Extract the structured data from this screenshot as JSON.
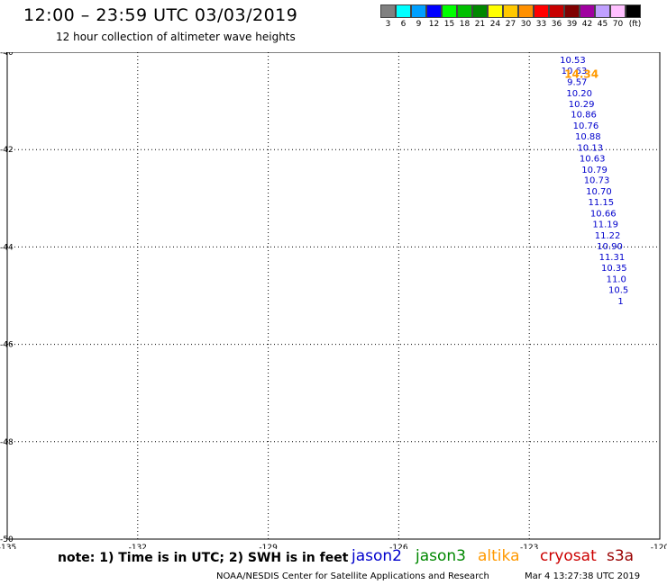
{
  "header": {
    "title": "12:00 – 23:59 UTC 03/03/2019",
    "subtitle": "12 hour collection of altimeter wave heights"
  },
  "scale": {
    "swatches": [
      {
        "color": "#808080",
        "label": "3"
      },
      {
        "color": "#00ffff",
        "label": "6"
      },
      {
        "color": "#00a0ff",
        "label": "9"
      },
      {
        "color": "#0000ff",
        "label": "12"
      },
      {
        "color": "#00ff00",
        "label": "15"
      },
      {
        "color": "#00c000",
        "label": "18"
      },
      {
        "color": "#008800",
        "label": "21"
      },
      {
        "color": "#ffff00",
        "label": "24"
      },
      {
        "color": "#ffc800",
        "label": "27"
      },
      {
        "color": "#ff9000",
        "label": "30"
      },
      {
        "color": "#ff0000",
        "label": "33"
      },
      {
        "color": "#c80000",
        "label": "36"
      },
      {
        "color": "#800000",
        "label": "39"
      },
      {
        "color": "#a000a0",
        "label": "42"
      },
      {
        "color": "#c0a0ff",
        "label": "45"
      },
      {
        "color": "#ffc0ff",
        "label": "70"
      },
      {
        "color": "#000000",
        "label": "(ft)"
      }
    ]
  },
  "map": {
    "lon_ticks": [
      -135,
      -132,
      -129,
      -126,
      -123,
      -120
    ],
    "lat_ticks": [
      -40,
      -42,
      -44,
      -46,
      -48,
      -50
    ],
    "lon_labels": [
      "-135",
      "-132",
      "-129",
      "-126",
      "-123",
      "-120"
    ],
    "lat_labels": [
      "-40",
      "-42",
      "-44",
      "-46",
      "-48",
      "-50"
    ]
  },
  "obs": {
    "jason2_color": "#0000cc",
    "altika_color": "#ff9900",
    "altika": {
      "lon": -121.8,
      "lat": -40.45,
      "value": "14.34"
    },
    "jason2": [
      {
        "lon": -122.0,
        "lat": -40.15,
        "value": "10.53"
      },
      {
        "lon": -121.97,
        "lat": -40.37,
        "value": "10.63"
      },
      {
        "lon": -121.9,
        "lat": -40.6,
        "value": "9.57"
      },
      {
        "lon": -121.85,
        "lat": -40.83,
        "value": "10.20"
      },
      {
        "lon": -121.8,
        "lat": -41.05,
        "value": "10.29"
      },
      {
        "lon": -121.75,
        "lat": -41.27,
        "value": "10.86"
      },
      {
        "lon": -121.7,
        "lat": -41.5,
        "value": "10.76"
      },
      {
        "lon": -121.65,
        "lat": -41.72,
        "value": "10.88"
      },
      {
        "lon": -121.6,
        "lat": -41.95,
        "value": "10.13"
      },
      {
        "lon": -121.55,
        "lat": -42.17,
        "value": "10.63"
      },
      {
        "lon": -121.5,
        "lat": -42.4,
        "value": "10.79"
      },
      {
        "lon": -121.45,
        "lat": -42.62,
        "value": "10.73"
      },
      {
        "lon": -121.4,
        "lat": -42.85,
        "value": "10.70"
      },
      {
        "lon": -121.35,
        "lat": -43.07,
        "value": "11.15"
      },
      {
        "lon": -121.3,
        "lat": -43.3,
        "value": "10.66"
      },
      {
        "lon": -121.25,
        "lat": -43.52,
        "value": "11.19"
      },
      {
        "lon": -121.2,
        "lat": -43.75,
        "value": "11.22"
      },
      {
        "lon": -121.15,
        "lat": -43.97,
        "value": "10.90"
      },
      {
        "lon": -121.1,
        "lat": -44.2,
        "value": "11.31"
      },
      {
        "lon": -121.05,
        "lat": -44.42,
        "value": "10.35"
      },
      {
        "lon": -121.0,
        "lat": -44.65,
        "value": "11.0"
      },
      {
        "lon": -120.95,
        "lat": -44.87,
        "value": "10.5"
      },
      {
        "lon": -120.9,
        "lat": -45.1,
        "value": "1"
      }
    ]
  },
  "footer": {
    "note": "note:  1) Time is in UTC;  2) SWH is in feet",
    "credit": "NOAA/NESDIS Center for Satellite Applications and Research",
    "timestamp": "Mar  4 13:27:38 UTC 2019",
    "legend": [
      {
        "label": "jason2",
        "color": "#0000cc"
      },
      {
        "label": "jason3",
        "color": "#008800"
      },
      {
        "label": "altika",
        "color": "#ff9900"
      },
      {
        "label": "cryosat",
        "color": "#cc0000"
      },
      {
        "label": "s3a",
        "color": "#990000"
      }
    ]
  }
}
